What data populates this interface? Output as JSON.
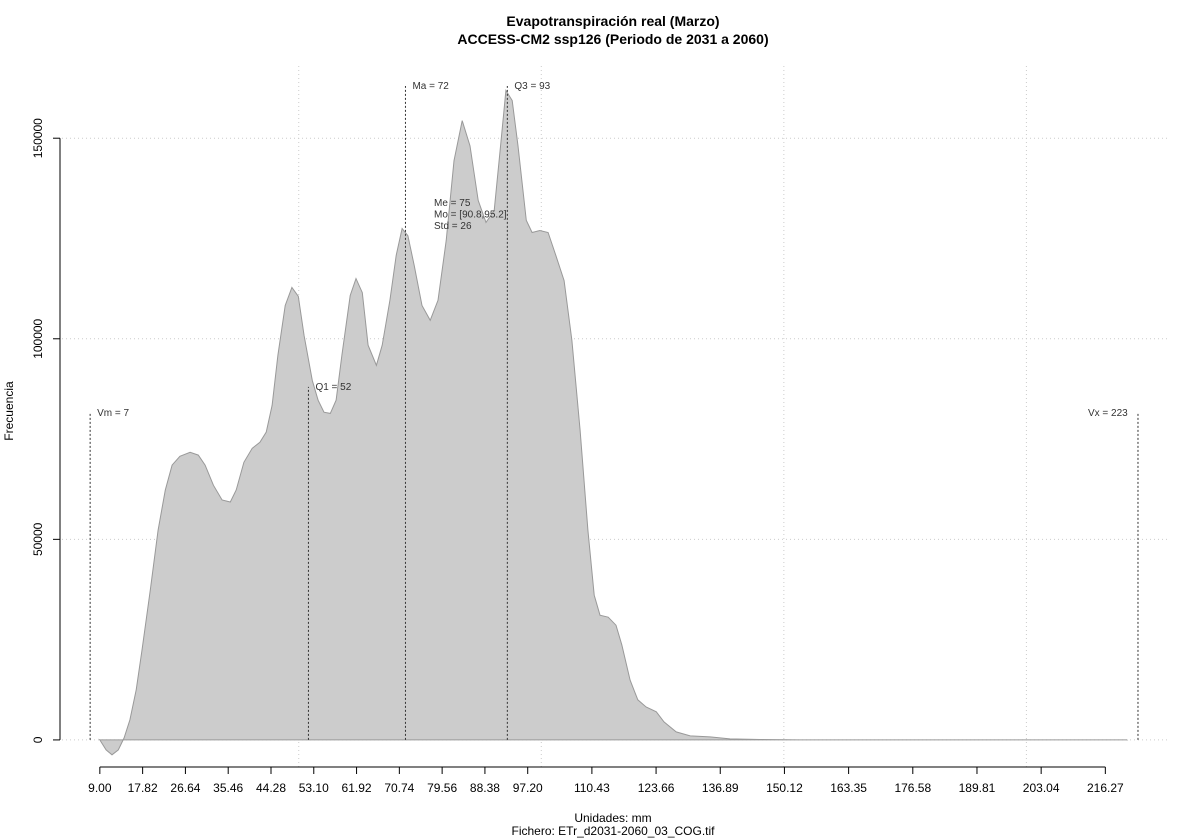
{
  "chart_data": {
    "type": "area",
    "title": "Evapotranspiración real (Marzo)",
    "subtitle": "ACCESS-CM2 ssp126 (Periodo de 2031 a 2060)",
    "xlabel": "Unidades: mm",
    "caption": "Fichero: ETr_d2031-2060_03_COG.tif",
    "ylabel": "Frecuencia",
    "color": "#cccccc",
    "line_color": "#999999",
    "x": [
      9.0,
      10.3,
      11.5,
      12.8,
      14.0,
      15.2,
      16.5,
      17.7,
      19.4,
      21.0,
      22.5,
      23.9,
      25.5,
      27.6,
      29.3,
      30.7,
      32.4,
      34.2,
      35.9,
      37.1,
      38.7,
      40.4,
      42.0,
      43.3,
      44.5,
      45.7,
      47.2,
      48.6,
      49.9,
      51.1,
      52.8,
      54.0,
      55.2,
      56.5,
      57.7,
      58.9,
      60.6,
      61.8,
      63.1,
      64.3,
      66.0,
      67.2,
      68.8,
      70.1,
      71.3,
      72.5,
      73.8,
      75.4,
      77.1,
      78.7,
      80.4,
      82.0,
      83.7,
      85.3,
      87.0,
      88.6,
      90.3,
      91.5,
      92.7,
      94.0,
      95.2,
      96.9,
      98.1,
      99.7,
      101.4,
      103.0,
      104.7,
      106.3,
      108.0,
      109.6,
      110.9,
      112.1,
      113.8,
      115.4,
      116.6,
      118.3,
      119.9,
      121.6,
      123.7,
      125.3,
      127.8,
      130.7,
      134.8,
      138.9,
      145.1,
      153.3,
      220.7
    ],
    "values": [
      0,
      -2500,
      -3700,
      -2500,
      500,
      5000,
      12500,
      22400,
      37400,
      52300,
      62300,
      68500,
      70700,
      71700,
      71000,
      68500,
      63500,
      59800,
      59300,
      62300,
      69200,
      72700,
      74200,
      76700,
      83400,
      95900,
      108300,
      112800,
      110600,
      100800,
      89600,
      84700,
      81700,
      81400,
      84700,
      95900,
      110800,
      115000,
      111500,
      98400,
      93400,
      98400,
      109600,
      120800,
      127500,
      125700,
      118300,
      108300,
      104600,
      109600,
      124500,
      144400,
      154400,
      148100,
      134500,
      129000,
      132000,
      146900,
      161900,
      159400,
      148100,
      129500,
      126500,
      127000,
      126500,
      120800,
      114500,
      99600,
      77200,
      52300,
      36100,
      31100,
      30600,
      28600,
      23700,
      14900,
      10000,
      8200,
      7000,
      4500,
      2000,
      1000,
      750,
      250,
      100,
      0,
      0
    ],
    "xlim": [
      1.2,
      229.6
    ],
    "ylim": [
      -7000,
      168000
    ],
    "xticks": [
      {
        "value": 9.0,
        "label": "9.00"
      },
      {
        "value": 17.82,
        "label": "17.82"
      },
      {
        "value": 26.64,
        "label": "26.64"
      },
      {
        "value": 35.46,
        "label": "35.46"
      },
      {
        "value": 44.28,
        "label": "44.28"
      },
      {
        "value": 53.1,
        "label": "53.10"
      },
      {
        "value": 61.92,
        "label": "61.92"
      },
      {
        "value": 70.74,
        "label": "70.74"
      },
      {
        "value": 79.56,
        "label": "79.56"
      },
      {
        "value": 88.38,
        "label": "88.38"
      },
      {
        "value": 97.2,
        "label": "97.20"
      },
      {
        "value": 110.43,
        "label": "110.43"
      },
      {
        "value": 123.66,
        "label": "123.66"
      },
      {
        "value": 136.89,
        "label": "136.89"
      },
      {
        "value": 150.12,
        "label": "150.12"
      },
      {
        "value": 163.35,
        "label": "163.35"
      },
      {
        "value": 176.58,
        "label": "176.58"
      },
      {
        "value": 189.81,
        "label": "189.81"
      },
      {
        "value": 203.04,
        "label": "203.04"
      },
      {
        "value": 216.27,
        "label": "216.27"
      }
    ],
    "yticks": [
      0,
      50000,
      100000,
      150000
    ],
    "xgrid": [
      50,
      100,
      150,
      200
    ],
    "grid": true,
    "markers": [
      {
        "label": "Vm = 7",
        "value": 7,
        "top": 81500
      },
      {
        "label": "Q1 = 52",
        "value": 52,
        "top": 88000
      },
      {
        "label": "Ma = 72",
        "value": 72,
        "top": 163000
      },
      {
        "label": "Q3 = 93",
        "value": 93,
        "top": 163000
      },
      {
        "label": "Vx = 223",
        "value": 223,
        "top": 81500
      }
    ],
    "stats": [
      "Me = 75",
      "Mo = [90.8,95.2]",
      "Std = 26"
    ]
  }
}
